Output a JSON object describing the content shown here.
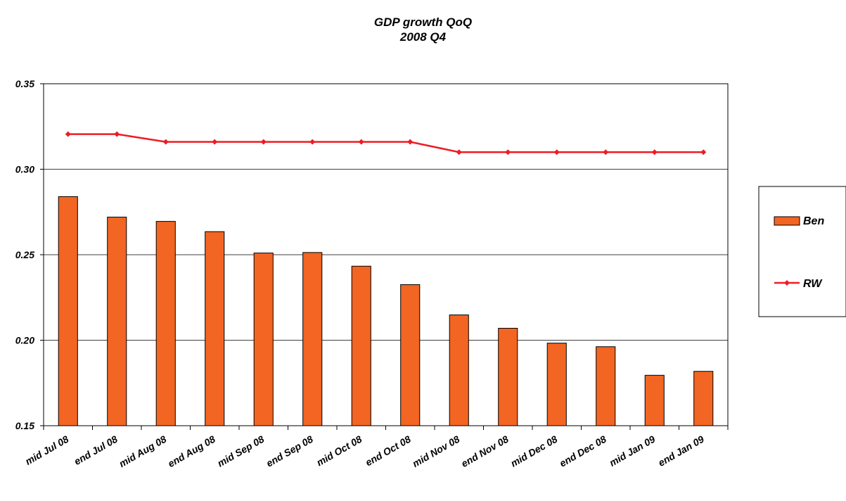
{
  "chart_data": {
    "type": "bar",
    "title": "GDP growth QoQ",
    "subtitle": "2008 Q4",
    "xlabel": "",
    "ylabel": "",
    "ylim": [
      0.15,
      0.35
    ],
    "yticks": [
      "0.15",
      "0.20",
      "0.25",
      "0.30",
      "0.35"
    ],
    "grid": true,
    "legend_position": "right",
    "categories": [
      "mid Jul 08",
      "end Jul 08",
      "mid Aug 08",
      "end Aug 08",
      "mid Sep 08",
      "end Sep 08",
      "mid Oct 08",
      "end Oct 08",
      "mid Nov 08",
      "end Nov 08",
      "mid Dec 08",
      "end Dec 08",
      "mid Jan 09",
      "end Jan 09"
    ],
    "series": [
      {
        "name": "Ben",
        "type": "bar",
        "color": "#F26522",
        "values": [
          0.284,
          0.272,
          0.2695,
          0.2635,
          0.251,
          0.2513,
          0.2433,
          0.2325,
          0.2148,
          0.207,
          0.1983,
          0.1962,
          0.1795,
          0.1818
        ]
      },
      {
        "name": "RW",
        "type": "line",
        "color": "#ED1C24",
        "values": [
          0.3205,
          0.3205,
          0.316,
          0.316,
          0.316,
          0.316,
          0.316,
          0.316,
          0.31,
          0.31,
          0.31,
          0.31,
          0.31,
          0.31
        ]
      }
    ]
  }
}
